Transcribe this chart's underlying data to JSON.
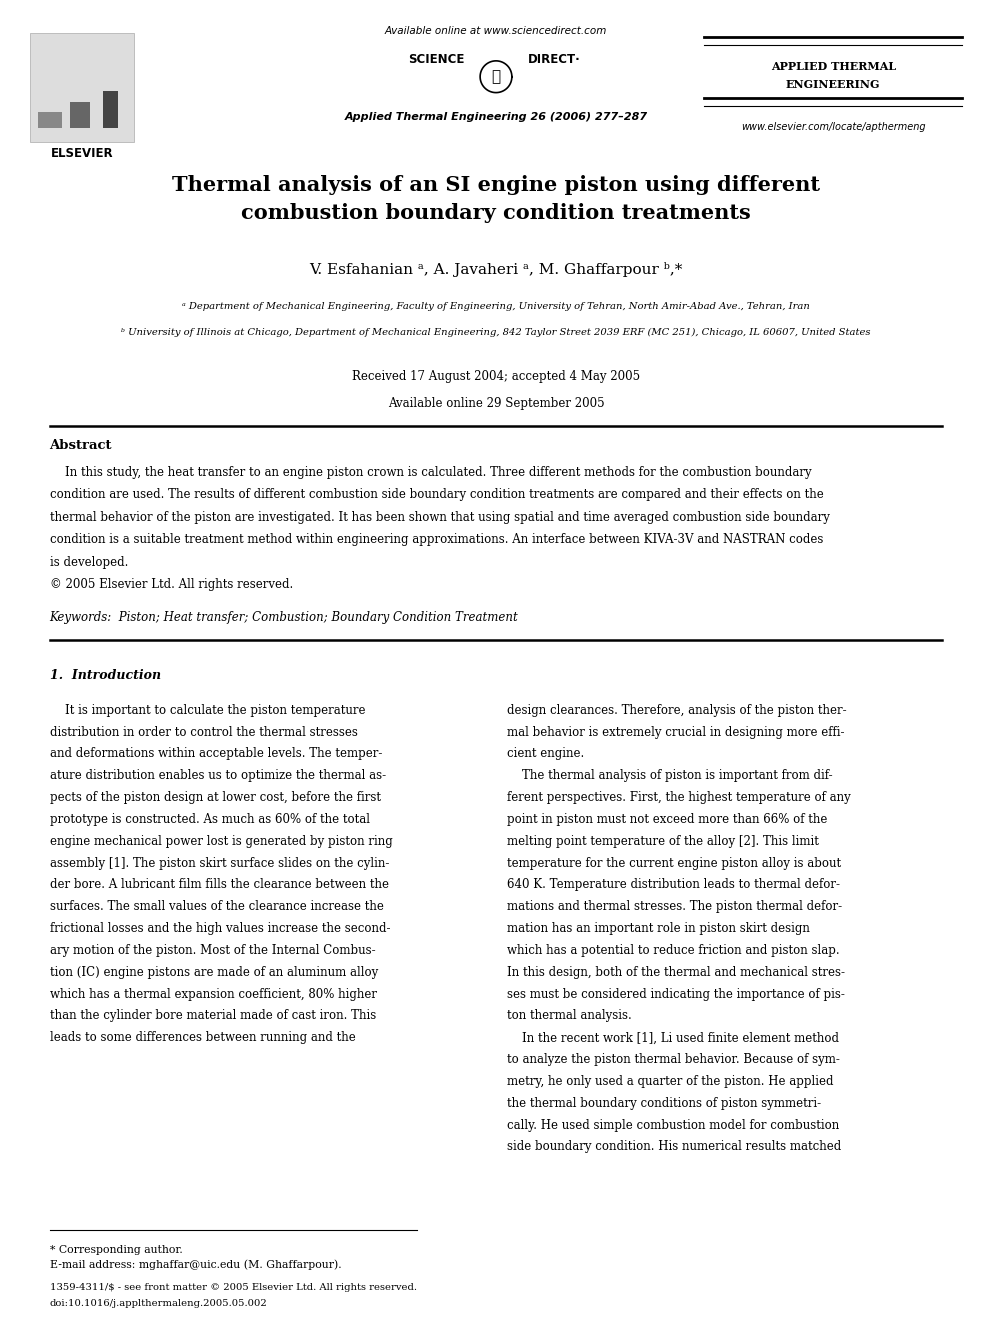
{
  "page_width": 9.92,
  "page_height": 13.23,
  "bg_color": "#ffffff",
  "header": {
    "available_online": "Available online at www.sciencedirect.com",
    "journal_ref": "Applied Thermal Engineering 26 (2006) 277–287",
    "journal_top_right": [
      "APPLIED THERMAL",
      "ENGINEERING"
    ],
    "website": "www.elsevier.com/locate/apthermeng",
    "elsevier_text": "ELSEVIER"
  },
  "title": "Thermal analysis of an SI engine piston using different\ncombustion boundary condition treatments",
  "authors": "V. Esfahanian ᵃ, A. Javaheri ᵃ, M. Ghaffarpour ᵇ,*",
  "affiliation_a": "ᵃ Department of Mechanical Engineering, Faculty of Engineering, University of Tehran, North Amir-Abad Ave., Tehran, Iran",
  "affiliation_b": "ᵇ University of Illinois at Chicago, Department of Mechanical Engineering, 842 Taylor Street 2039 ERF (MC 251), Chicago, IL 60607, United States",
  "received": "Received 17 August 2004; accepted 4 May 2005",
  "available": "Available online 29 September 2005",
  "abstract_title": "Abstract",
  "keywords": "Keywords:  Piston; Heat transfer; Combustion; Boundary Condition Treatment",
  "section1_title": "1.  Introduction",
  "footer_note": "* Corresponding author.",
  "footer_email": "E-mail address: mghaffar@uic.edu (M. Ghaffarpour).",
  "footer_issn": "1359-4311/$ - see front matter © 2005 Elsevier Ltd. All rights reserved.",
  "footer_doi": "doi:10.1016/j.applthermaleng.2005.05.002",
  "abs_lines": [
    "    In this study, the heat transfer to an engine piston crown is calculated. Three different methods for the combustion boundary",
    "condition are used. The results of different combustion side boundary condition treatments are compared and their effects on the",
    "thermal behavior of the piston are investigated. It has been shown that using spatial and time averaged combustion side boundary",
    "condition is a suitable treatment method within engineering approximations. An interface between KIVA-3V and NASTRAN codes",
    "is developed.",
    "© 2005 Elsevier Ltd. All rights reserved."
  ],
  "col1_lines": [
    "    It is important to calculate the piston temperature",
    "distribution in order to control the thermal stresses",
    "and deformations within acceptable levels. The temper-",
    "ature distribution enables us to optimize the thermal as-",
    "pects of the piston design at lower cost, before the first",
    "prototype is constructed. As much as 60% of the total",
    "engine mechanical power lost is generated by piston ring",
    "assembly [1]. The piston skirt surface slides on the cylin-",
    "der bore. A lubricant film fills the clearance between the",
    "surfaces. The small values of the clearance increase the",
    "frictional losses and the high values increase the second-",
    "ary motion of the piston. Most of the Internal Combus-",
    "tion (IC) engine pistons are made of an aluminum alloy",
    "which has a thermal expansion coefficient, 80% higher",
    "than the cylinder bore material made of cast iron. This",
    "leads to some differences between running and the"
  ],
  "col2_lines": [
    "design clearances. Therefore, analysis of the piston ther-",
    "mal behavior is extremely crucial in designing more effi-",
    "cient engine.",
    "    The thermal analysis of piston is important from dif-",
    "ferent perspectives. First, the highest temperature of any",
    "point in piston must not exceed more than 66% of the",
    "melting point temperature of the alloy [2]. This limit",
    "temperature for the current engine piston alloy is about",
    "640 K. Temperature distribution leads to thermal defor-",
    "mations and thermal stresses. The piston thermal defor-",
    "mation has an important role in piston skirt design",
    "which has a potential to reduce friction and piston slap.",
    "In this design, both of the thermal and mechanical stres-",
    "ses must be considered indicating the importance of pis-",
    "ton thermal analysis.",
    "    In the recent work [1], Li used finite element method",
    "to analyze the piston thermal behavior. Because of sym-",
    "metry, he only used a quarter of the piston. He applied",
    "the thermal boundary conditions of piston symmetri-",
    "cally. He used simple combustion model for combustion",
    "side boundary condition. His numerical results matched"
  ]
}
